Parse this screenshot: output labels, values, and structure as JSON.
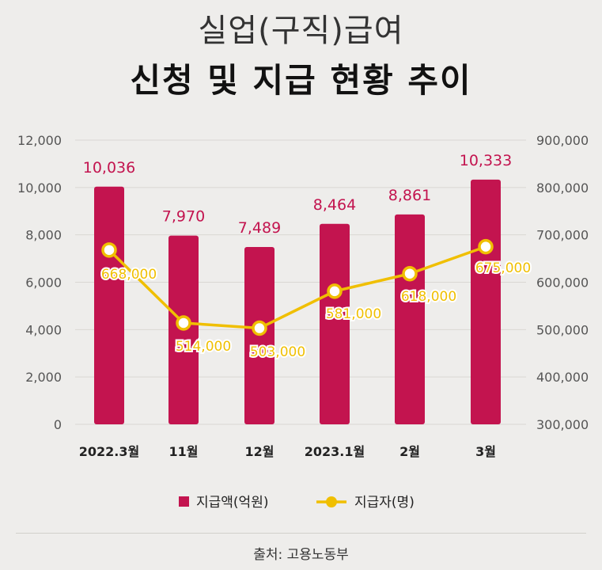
{
  "title_line1": "실업(구직)급여",
  "title_line2": "신청 및 지급 현황 추이",
  "source": "출처: 고용노동부",
  "colors": {
    "bar": "#c3144f",
    "line": "#f0bf00",
    "bar_label": "#c3144f",
    "line_label": "#f0bf00",
    "axis_text": "#555555",
    "grid": "#d9d7d3"
  },
  "chart_data": {
    "type": "bar+line",
    "categories": [
      "2022.3월",
      "11월",
      "12월",
      "2023.1월",
      "2월",
      "3월"
    ],
    "series": [
      {
        "name": "지급액(억원)",
        "type": "bar",
        "axis": "left",
        "values": [
          10036,
          7970,
          7489,
          8464,
          8861,
          10333
        ],
        "labels": [
          "10,036",
          "7,970",
          "7,489",
          "8,464",
          "8,861",
          "10,333"
        ]
      },
      {
        "name": "지급자(명)",
        "type": "line",
        "axis": "right",
        "values": [
          668000,
          514000,
          503000,
          581000,
          618000,
          675000
        ],
        "labels": [
          "668,000",
          "514,000",
          "503,000",
          "581,000",
          "618,000",
          "675,000"
        ]
      }
    ],
    "y_left": {
      "min": 0,
      "max": 12000,
      "ticks": [
        "0",
        "2,000",
        "4,000",
        "6,000",
        "8,000",
        "10,000",
        "12,000"
      ]
    },
    "y_right": {
      "min": 300000,
      "max": 900000,
      "ticks": [
        "300,000",
        "400,000",
        "500,000",
        "600,000",
        "700,000",
        "800,000",
        "900,000"
      ]
    },
    "grid": true,
    "legend_position": "bottom"
  }
}
